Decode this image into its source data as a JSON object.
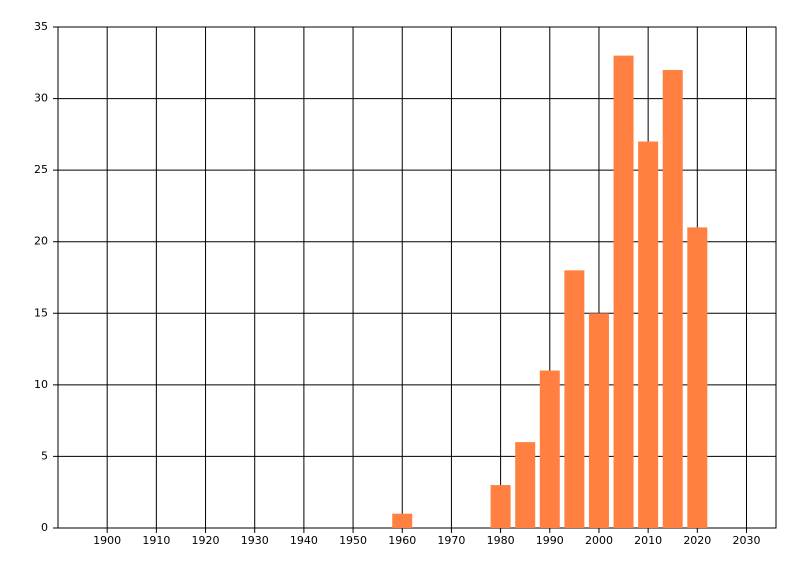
{
  "chart_data": {
    "type": "bar",
    "x": [
      1960,
      1980,
      1985,
      1990,
      1995,
      2000,
      2005,
      2010,
      2015,
      2020
    ],
    "values": [
      1,
      3,
      6,
      11,
      18,
      15,
      33,
      27,
      32,
      21
    ],
    "color": "#ff8040",
    "xlim": [
      1890,
      2036
    ],
    "xticks": [
      1900,
      1910,
      1920,
      1930,
      1940,
      1950,
      1960,
      1970,
      1980,
      1990,
      2000,
      2010,
      2020,
      2030
    ],
    "ylim": [
      0,
      35
    ],
    "yticks": [
      0,
      5,
      10,
      15,
      20,
      25,
      30,
      35
    ],
    "grid": true
  }
}
